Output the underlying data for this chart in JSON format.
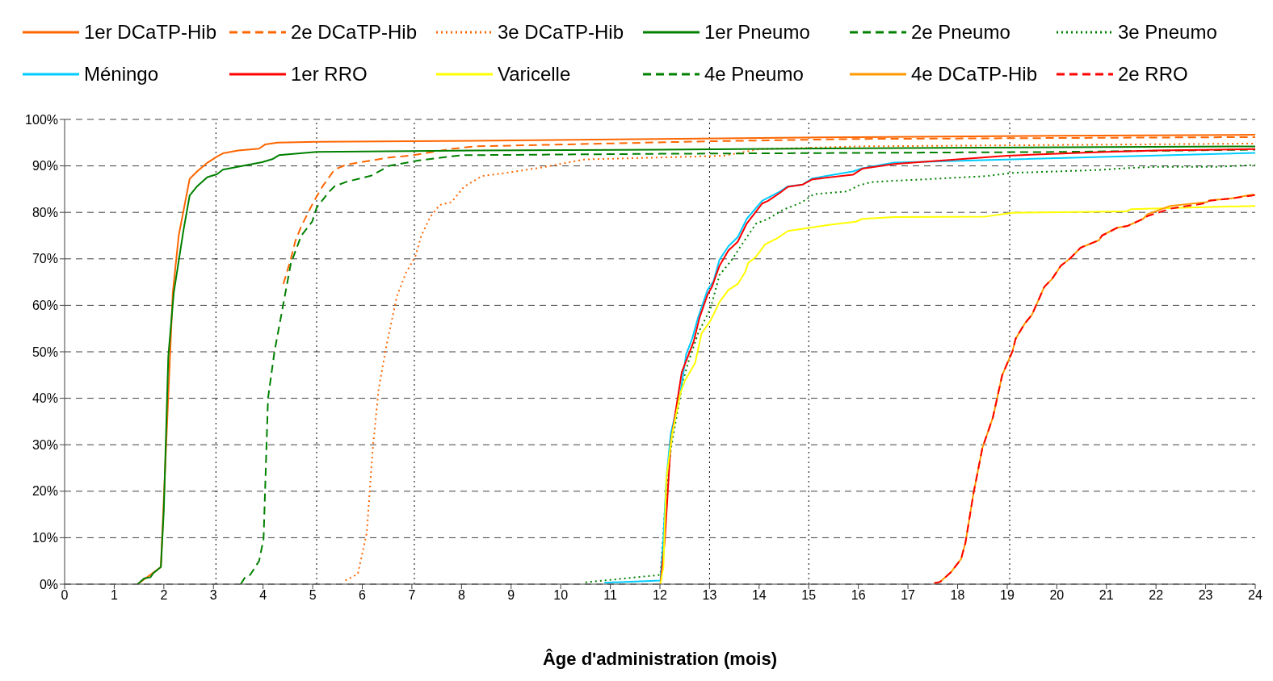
{
  "chart_data": {
    "type": "line",
    "xlabel": "Âge d'administration (mois)",
    "xlim": [
      0,
      24
    ],
    "xticks": [
      0,
      1,
      2,
      3,
      4,
      5,
      6,
      7,
      8,
      9,
      10,
      11,
      12,
      13,
      14,
      15,
      16,
      17,
      18,
      19,
      20,
      21,
      22,
      23,
      24
    ],
    "ylim": [
      0,
      100
    ],
    "yticks": [
      {
        "value": 0,
        "label": "0%"
      },
      {
        "value": 10,
        "label": "10%"
      },
      {
        "value": 20,
        "label": "20%"
      },
      {
        "value": 30,
        "label": "30%"
      },
      {
        "value": 40,
        "label": "40%"
      },
      {
        "value": 50,
        "label": "50%"
      },
      {
        "value": 60,
        "label": "60%"
      },
      {
        "value": 70,
        "label": "70%"
      },
      {
        "value": 80,
        "label": "80%"
      },
      {
        "value": 90,
        "label": "90%"
      },
      {
        "value": 100,
        "label": "100%"
      }
    ],
    "grid": "y",
    "legend": "top",
    "ref_lines": [
      {
        "axis": "x",
        "value": 3.05,
        "color": "#000000",
        "line_style": "dotted"
      },
      {
        "axis": "x",
        "value": 5.08,
        "color": "#000000",
        "line_style": "dotted"
      },
      {
        "axis": "x",
        "value": 7.05,
        "color": "#000000",
        "line_style": "dotted"
      },
      {
        "axis": "x",
        "value": 13,
        "color": "#000000",
        "line_style": "dotted"
      },
      {
        "axis": "x",
        "value": 15,
        "color": "#000000",
        "line_style": "dotted"
      },
      {
        "axis": "x",
        "value": 19.05,
        "color": "#000000",
        "line_style": "dotted"
      }
    ],
    "series": [
      {
        "name": "1er DCaTP-Hib",
        "color": "#ff6600",
        "line_style": "solid",
        "x": [
          1.47,
          1.94,
          2.18,
          2.3,
          2.52,
          2.67,
          2.88,
          3.07,
          3.19,
          3.5,
          3.92,
          4.04,
          4.29,
          5.08,
          8.26,
          12,
          16,
          20,
          24
        ],
        "values": [
          0,
          3.7,
          62.7,
          75,
          87.2,
          88.8,
          90.7,
          92,
          92.7,
          93.3,
          93.7,
          94.6,
          95,
          95.2,
          95.4,
          95.8,
          96.2,
          96.5,
          96.7
        ]
      },
      {
        "name": "2e DCaTP-Hib",
        "color": "#ff6600",
        "line_style": "dashed",
        "x": [
          4.41,
          4.56,
          4.65,
          4.77,
          5.02,
          5.2,
          5.44,
          5.69,
          6.54,
          7.03,
          7.76,
          8.26,
          13,
          16,
          20,
          24
        ],
        "values": [
          64.6,
          70,
          73.8,
          77,
          82.3,
          85.6,
          89.2,
          90.3,
          91.8,
          92.3,
          93.6,
          94.2,
          95.3,
          95.8,
          96,
          96.2
        ]
      },
      {
        "name": "3e DCaTP-Hib",
        "color": "#ff6600",
        "line_style": "dotted",
        "x": [
          5.66,
          5.91,
          6.09,
          6.21,
          6.33,
          6.49,
          6.7,
          6.88,
          7.07,
          7.19,
          7.37,
          7.56,
          7.8,
          8.05,
          8.41,
          8.84,
          9.64,
          10.13,
          10.49,
          12.34,
          13.3,
          14,
          16,
          20,
          24
        ],
        "values": [
          0.8,
          2.2,
          11,
          29,
          42,
          51.5,
          62,
          67,
          70.5,
          75,
          79,
          81.6,
          82.2,
          85.5,
          87.8,
          88.4,
          89.7,
          90.7,
          91.4,
          91.9,
          92.2,
          93.6,
          94.2,
          94.5,
          94.8
        ]
      },
      {
        "name": "1er Pneumo",
        "color": "#008000",
        "line_style": "solid",
        "x": [
          1.47,
          1.6,
          1.73,
          1.79,
          1.94,
          2,
          2.09,
          2.2,
          2.4,
          2.52,
          2.67,
          2.88,
          3.07,
          3.19,
          3.98,
          4.2,
          4.32,
          5.08,
          8.26,
          12,
          16,
          24
        ],
        "values": [
          0,
          1.2,
          1.5,
          2.4,
          3.7,
          16,
          49,
          62.7,
          76.4,
          83.6,
          85.6,
          87.6,
          88.2,
          89.2,
          90.8,
          91.5,
          92.3,
          93,
          93.3,
          93.5,
          93.8,
          94.2
        ]
      },
      {
        "name": "2e Pneumo",
        "color": "#008000",
        "line_style": "dashed",
        "x": [
          3.55,
          3.65,
          3.74,
          3.92,
          4.01,
          4.1,
          4.23,
          4.56,
          4.77,
          4.99,
          5.08,
          5.32,
          5.44,
          5.69,
          6.18,
          6.54,
          7.15,
          8,
          12,
          16,
          20,
          24
        ],
        "values": [
          0,
          1.7,
          2,
          5,
          9.7,
          40,
          50,
          69,
          75,
          78,
          81,
          84.3,
          85.6,
          86.6,
          87.9,
          90,
          91.2,
          92.3,
          92.6,
          92.8,
          93,
          93.5
        ]
      },
      {
        "name": "3e Pneumo",
        "color": "#008000",
        "line_style": "dotted",
        "x": [
          10.5,
          12.01,
          12.1,
          12.22,
          12.46,
          12.58,
          12.77,
          13.02,
          13.2,
          13.45,
          13.69,
          13.94,
          14.18,
          14.49,
          14.85,
          15.1,
          15.77,
          16.01,
          16.26,
          16.72,
          17.33,
          18.57,
          19.1,
          20.8,
          21.55,
          22,
          23.2,
          24
        ],
        "values": [
          0.4,
          2,
          16,
          29,
          43.6,
          48,
          54,
          59.3,
          66.5,
          69.8,
          73.7,
          77.6,
          78.6,
          80.6,
          82.1,
          83.9,
          84.5,
          85.8,
          86.5,
          86.8,
          87.1,
          87.8,
          88.5,
          89.1,
          89.6,
          89.8,
          89.8,
          90.2
        ]
      },
      {
        "name": "Méningo",
        "color": "#00ccff",
        "line_style": "solid",
        "x": [
          10.88,
          12.01,
          12.07,
          12.13,
          12.22,
          12.41,
          12.53,
          12.65,
          12.77,
          12.96,
          13.08,
          13.2,
          13.38,
          13.57,
          13.75,
          14.06,
          14.42,
          14.58,
          14.88,
          15.07,
          15.89,
          16.08,
          16.72,
          19.12,
          24
        ],
        "values": [
          0.3,
          0.8,
          9.7,
          22.7,
          32.5,
          41,
          49.5,
          52.8,
          57.4,
          63.3,
          65.2,
          69.8,
          72.7,
          74.7,
          78.6,
          82.5,
          84.5,
          85.6,
          86,
          87.3,
          88.8,
          89.5,
          90.7,
          91.4,
          92.8
        ]
      },
      {
        "name": "1er RRO",
        "color": "#ff0000",
        "line_style": "solid",
        "x": [
          12.01,
          12.1,
          12.22,
          12.44,
          12.68,
          12.8,
          12.96,
          13.05,
          13.2,
          13.38,
          13.57,
          13.75,
          14.06,
          14.18,
          14.42,
          14.58,
          14.88,
          15.07,
          15.89,
          16.08,
          16.72,
          19,
          20,
          21,
          22,
          24
        ],
        "values": [
          0,
          9.7,
          30.6,
          45.6,
          52.2,
          57.4,
          62.3,
          64,
          68.5,
          71.8,
          73.7,
          77.6,
          81.9,
          82.5,
          84.2,
          85.5,
          86,
          87.1,
          88.1,
          89.4,
          90.4,
          92.2,
          92.6,
          93,
          93.3,
          93.6
        ]
      },
      {
        "name": "Varicelle",
        "color": "#ffff00",
        "line_style": "solid",
        "x": [
          12.01,
          12.07,
          12.13,
          12.25,
          12.41,
          12.5,
          12.71,
          12.84,
          13.02,
          13.2,
          13.38,
          13.57,
          13.72,
          13.78,
          13.94,
          14.12,
          14.36,
          14.58,
          14.91,
          15.4,
          15.95,
          16.08,
          16.72,
          18.57,
          19.1,
          21.4,
          21.5,
          24
        ],
        "values": [
          0,
          3.8,
          22.7,
          32.5,
          41,
          43.7,
          47.6,
          54,
          56.7,
          60.7,
          63.3,
          64.6,
          67.2,
          69.1,
          70.5,
          73.1,
          74.4,
          76,
          76.5,
          77.3,
          78,
          78.6,
          79,
          79.1,
          79.9,
          80.2,
          80.7,
          81.4
        ]
      },
      {
        "name": "4e Pneumo",
        "color": "#008000",
        "line_style": "dashed"
      },
      {
        "name": "4e DCaTP-Hib",
        "color": "#ff9900",
        "line_style": "solid",
        "x": [
          17.53,
          17.65,
          17.86,
          18.07,
          18.16,
          18.32,
          18.5,
          18.71,
          18.9,
          19.11,
          19.17,
          19.35,
          19.5,
          19.75,
          19.9,
          20.08,
          20.27,
          20.48,
          20.85,
          20.91,
          21.22,
          21.43,
          21.74,
          21.83,
          22.29,
          23.02,
          23.08,
          23.51,
          23.93,
          24
        ],
        "values": [
          0.2,
          0.5,
          2.5,
          5.4,
          9,
          19.5,
          29.3,
          35.8,
          45,
          50.2,
          52.8,
          56,
          58,
          64,
          65.6,
          68.5,
          70.1,
          72.4,
          74,
          75,
          76.7,
          77.1,
          78.6,
          79.6,
          81.4,
          82.2,
          82.6,
          83,
          83.8,
          83.7
        ]
      },
      {
        "name": "2e RRO",
        "color": "#ff0000",
        "line_style": "dashed",
        "x": [
          17.53,
          17.65,
          17.86,
          18.07,
          18.16,
          18.32,
          18.5,
          18.71,
          18.9,
          19.11,
          19.17,
          19.35,
          19.5,
          19.75,
          19.9,
          20.08,
          20.27,
          20.48,
          20.85,
          20.91,
          21.22,
          21.43,
          21.74,
          21.83,
          22.29,
          23.02,
          23.08,
          23.51,
          23.93,
          24
        ],
        "values": [
          0.2,
          0.5,
          2.5,
          5.4,
          9,
          19.5,
          29.3,
          35.8,
          45,
          50.2,
          52.8,
          56,
          58,
          64,
          65.6,
          68.5,
          70.1,
          72.4,
          74,
          75,
          76.7,
          77.1,
          78.6,
          79.2,
          80.8,
          82,
          82.5,
          83,
          83.6,
          83.8
        ]
      }
    ]
  }
}
